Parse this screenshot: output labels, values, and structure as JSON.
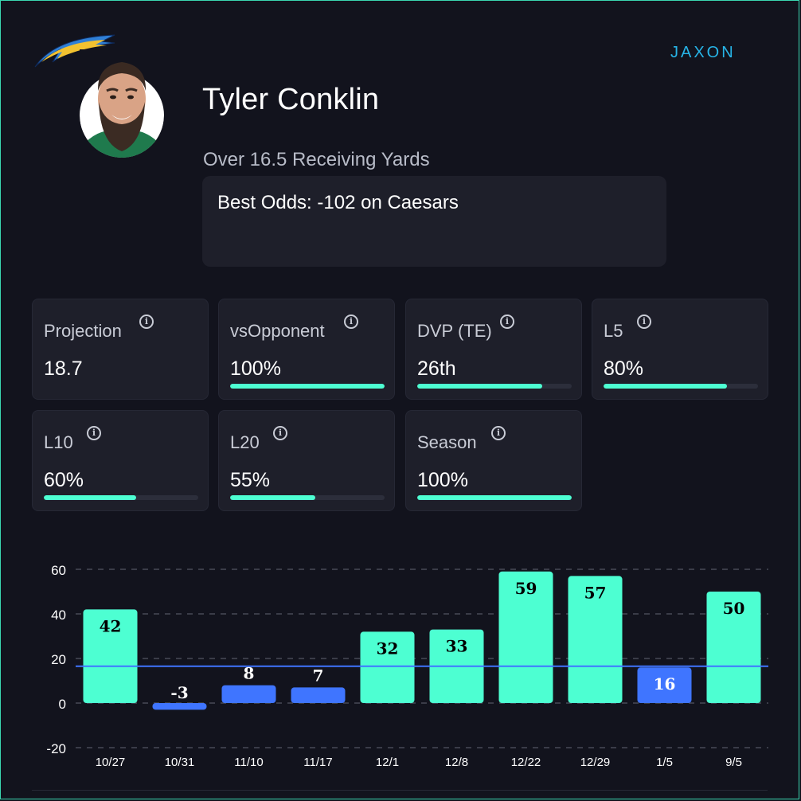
{
  "player": {
    "name": "Tyler Conklin",
    "prop": "Over 16.5 Receiving Yards",
    "odds": "Best Odds: -102 on Caesars"
  },
  "brand": {
    "name": "JAXON",
    "accent": "#27b5e8"
  },
  "colors": {
    "background": "#12131d",
    "card": "#1e1f2a",
    "over": "#4dffd2",
    "under": "#3f75ff",
    "line": "#3f75ff"
  },
  "cards": [
    {
      "label": "Projection",
      "value": "18.7",
      "bar": null
    },
    {
      "label": "vsOpponent",
      "value": "100%",
      "bar": 100
    },
    {
      "label": "DVP (TE)",
      "value": "26th",
      "bar": 81
    },
    {
      "label": "L5",
      "value": "80%",
      "bar": 80
    },
    {
      "label": "L10",
      "value": "60%",
      "bar": 60
    },
    {
      "label": "L20",
      "value": "55%",
      "bar": 55
    },
    {
      "label": "Season",
      "value": "100%",
      "bar": 100
    }
  ],
  "chart_data": {
    "type": "bar",
    "categories": [
      "10/27",
      "10/31",
      "11/10",
      "11/17",
      "12/1",
      "12/8",
      "12/22",
      "12/29",
      "1/5",
      "9/5"
    ],
    "values": [
      42,
      -3,
      8,
      7,
      32,
      33,
      59,
      57,
      16,
      50
    ],
    "line_value": 16.5,
    "ylim": [
      -20,
      60
    ],
    "yticks": [
      -20,
      0,
      20,
      40,
      60
    ],
    "grid": true,
    "title": "",
    "xlabel": "",
    "ylabel": ""
  }
}
